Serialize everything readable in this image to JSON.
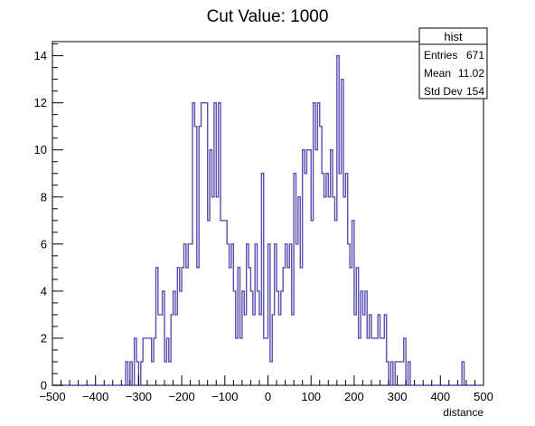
{
  "chart_data": {
    "type": "bar",
    "title": "Cut Value: 1000",
    "xlabel": "distance",
    "ylabel": "",
    "xlim": [
      -500,
      500
    ],
    "ylim": [
      0,
      14.6
    ],
    "bin_width": 5,
    "x_ticks": [
      -500,
      -400,
      -300,
      -200,
      -100,
      0,
      100,
      200,
      300,
      400,
      500
    ],
    "y_ticks": [
      0,
      2,
      4,
      6,
      8,
      10,
      12,
      14
    ],
    "line_color": "#5a4fb0",
    "grid": false,
    "legend": "top-right",
    "stats": {
      "title": "hist",
      "rows": [
        {
          "label": "Entries",
          "value": "671"
        },
        {
          "label": "Mean",
          "value": "11.02"
        },
        {
          "label": "Std Dev",
          "value": "154"
        }
      ]
    },
    "bins": [
      {
        "x": -330,
        "y": 1
      },
      {
        "x": -325,
        "y": 0
      },
      {
        "x": -320,
        "y": 1
      },
      {
        "x": -315,
        "y": 0
      },
      {
        "x": -310,
        "y": 2
      },
      {
        "x": -305,
        "y": 1
      },
      {
        "x": -300,
        "y": 0
      },
      {
        "x": -295,
        "y": 1
      },
      {
        "x": -290,
        "y": 2
      },
      {
        "x": -285,
        "y": 2
      },
      {
        "x": -280,
        "y": 2
      },
      {
        "x": -275,
        "y": 2
      },
      {
        "x": -270,
        "y": 1
      },
      {
        "x": -265,
        "y": 2
      },
      {
        "x": -260,
        "y": 5
      },
      {
        "x": -255,
        "y": 3
      },
      {
        "x": -250,
        "y": 3
      },
      {
        "x": -245,
        "y": 4
      },
      {
        "x": -240,
        "y": 1
      },
      {
        "x": -235,
        "y": 2
      },
      {
        "x": -230,
        "y": 1
      },
      {
        "x": -225,
        "y": 3
      },
      {
        "x": -220,
        "y": 4
      },
      {
        "x": -215,
        "y": 3
      },
      {
        "x": -210,
        "y": 5
      },
      {
        "x": -205,
        "y": 4
      },
      {
        "x": -200,
        "y": 5
      },
      {
        "x": -195,
        "y": 6
      },
      {
        "x": -190,
        "y": 5
      },
      {
        "x": -185,
        "y": 6
      },
      {
        "x": -180,
        "y": 6
      },
      {
        "x": -175,
        "y": 12
      },
      {
        "x": -170,
        "y": 11
      },
      {
        "x": -165,
        "y": 5
      },
      {
        "x": -160,
        "y": 11
      },
      {
        "x": -155,
        "y": 12
      },
      {
        "x": -150,
        "y": 12
      },
      {
        "x": -145,
        "y": 12
      },
      {
        "x": -140,
        "y": 7
      },
      {
        "x": -135,
        "y": 10
      },
      {
        "x": -130,
        "y": 8
      },
      {
        "x": -125,
        "y": 12
      },
      {
        "x": -120,
        "y": 8
      },
      {
        "x": -115,
        "y": 12
      },
      {
        "x": -110,
        "y": 7
      },
      {
        "x": -105,
        "y": 7
      },
      {
        "x": -100,
        "y": 7
      },
      {
        "x": -95,
        "y": 6
      },
      {
        "x": -90,
        "y": 5
      },
      {
        "x": -85,
        "y": 6
      },
      {
        "x": -80,
        "y": 4
      },
      {
        "x": -75,
        "y": 2
      },
      {
        "x": -70,
        "y": 5
      },
      {
        "x": -65,
        "y": 2
      },
      {
        "x": -60,
        "y": 4
      },
      {
        "x": -55,
        "y": 3
      },
      {
        "x": -50,
        "y": 6
      },
      {
        "x": -45,
        "y": 5
      },
      {
        "x": -40,
        "y": 4
      },
      {
        "x": -35,
        "y": 3
      },
      {
        "x": -30,
        "y": 6
      },
      {
        "x": -25,
        "y": 4
      },
      {
        "x": -20,
        "y": 3
      },
      {
        "x": -15,
        "y": 9
      },
      {
        "x": -10,
        "y": 2
      },
      {
        "x": -5,
        "y": 2
      },
      {
        "x": 0,
        "y": 6
      },
      {
        "x": 5,
        "y": 1
      },
      {
        "x": 10,
        "y": 3
      },
      {
        "x": 15,
        "y": 6
      },
      {
        "x": 20,
        "y": 4
      },
      {
        "x": 25,
        "y": 3
      },
      {
        "x": 30,
        "y": 4
      },
      {
        "x": 35,
        "y": 5
      },
      {
        "x": 40,
        "y": 6
      },
      {
        "x": 45,
        "y": 5
      },
      {
        "x": 50,
        "y": 6
      },
      {
        "x": 55,
        "y": 3
      },
      {
        "x": 60,
        "y": 9
      },
      {
        "x": 65,
        "y": 6
      },
      {
        "x": 70,
        "y": 8
      },
      {
        "x": 75,
        "y": 5
      },
      {
        "x": 80,
        "y": 10
      },
      {
        "x": 85,
        "y": 9
      },
      {
        "x": 90,
        "y": 10
      },
      {
        "x": 95,
        "y": 10
      },
      {
        "x": 100,
        "y": 7
      },
      {
        "x": 105,
        "y": 12
      },
      {
        "x": 110,
        "y": 10
      },
      {
        "x": 115,
        "y": 12
      },
      {
        "x": 120,
        "y": 11
      },
      {
        "x": 125,
        "y": 9
      },
      {
        "x": 130,
        "y": 8
      },
      {
        "x": 135,
        "y": 9
      },
      {
        "x": 140,
        "y": 8
      },
      {
        "x": 145,
        "y": 10
      },
      {
        "x": 150,
        "y": 8
      },
      {
        "x": 155,
        "y": 7
      },
      {
        "x": 160,
        "y": 14
      },
      {
        "x": 165,
        "y": 9
      },
      {
        "x": 170,
        "y": 13
      },
      {
        "x": 175,
        "y": 8
      },
      {
        "x": 180,
        "y": 9
      },
      {
        "x": 185,
        "y": 6
      },
      {
        "x": 190,
        "y": 5
      },
      {
        "x": 195,
        "y": 7
      },
      {
        "x": 200,
        "y": 3
      },
      {
        "x": 205,
        "y": 5
      },
      {
        "x": 210,
        "y": 2
      },
      {
        "x": 215,
        "y": 4
      },
      {
        "x": 220,
        "y": 3
      },
      {
        "x": 225,
        "y": 4
      },
      {
        "x": 230,
        "y": 2
      },
      {
        "x": 235,
        "y": 3
      },
      {
        "x": 240,
        "y": 2
      },
      {
        "x": 245,
        "y": 2
      },
      {
        "x": 250,
        "y": 2
      },
      {
        "x": 255,
        "y": 3
      },
      {
        "x": 260,
        "y": 2
      },
      {
        "x": 265,
        "y": 2
      },
      {
        "x": 270,
        "y": 3
      },
      {
        "x": 275,
        "y": 1
      },
      {
        "x": 280,
        "y": 0
      },
      {
        "x": 285,
        "y": 1
      },
      {
        "x": 290,
        "y": 0
      },
      {
        "x": 295,
        "y": 1
      },
      {
        "x": 300,
        "y": 1
      },
      {
        "x": 305,
        "y": 1
      },
      {
        "x": 310,
        "y": 1
      },
      {
        "x": 315,
        "y": 2
      },
      {
        "x": 320,
        "y": 0
      },
      {
        "x": 325,
        "y": 1
      },
      {
        "x": 330,
        "y": 0
      },
      {
        "x": 335,
        "y": 0
      },
      {
        "x": 340,
        "y": 0
      },
      {
        "x": 345,
        "y": 0
      },
      {
        "x": 350,
        "y": 0
      },
      {
        "x": 355,
        "y": 0
      },
      {
        "x": 360,
        "y": 0
      },
      {
        "x": 365,
        "y": 0
      },
      {
        "x": 370,
        "y": 0
      },
      {
        "x": 375,
        "y": 0
      },
      {
        "x": 380,
        "y": 0
      },
      {
        "x": 385,
        "y": 0
      },
      {
        "x": 390,
        "y": 0
      },
      {
        "x": 395,
        "y": 0
      },
      {
        "x": 400,
        "y": 0
      },
      {
        "x": 405,
        "y": 0
      },
      {
        "x": 410,
        "y": 0
      },
      {
        "x": 415,
        "y": 0
      },
      {
        "x": 420,
        "y": 0
      },
      {
        "x": 425,
        "y": 0
      },
      {
        "x": 430,
        "y": 0
      },
      {
        "x": 435,
        "y": 0
      },
      {
        "x": 440,
        "y": 0
      },
      {
        "x": 445,
        "y": 0
      },
      {
        "x": 450,
        "y": 1
      },
      {
        "x": 455,
        "y": 0
      }
    ]
  }
}
